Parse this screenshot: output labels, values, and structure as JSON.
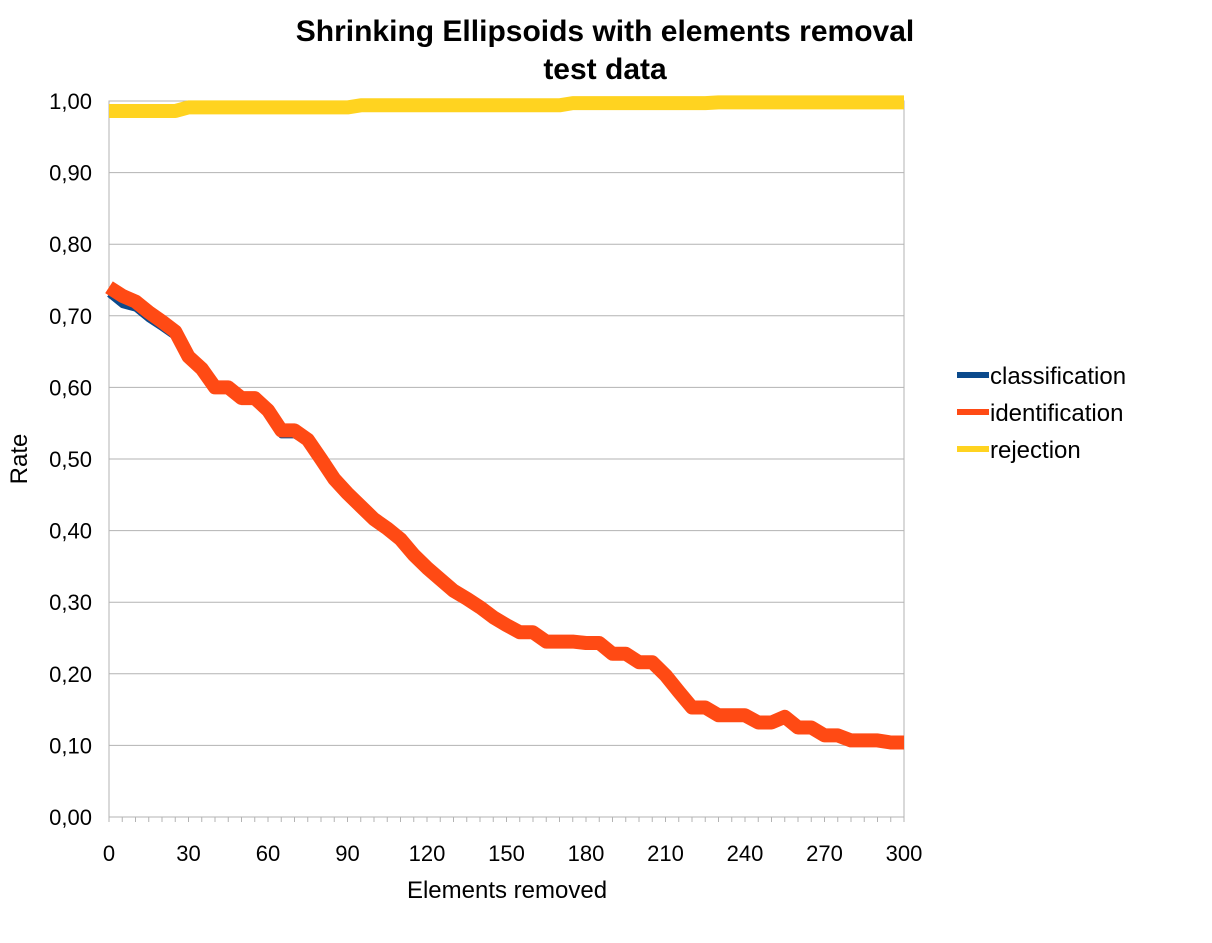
{
  "chart_data": {
    "type": "line",
    "title": "Shrinking Ellipsoids with elements removal",
    "subtitle": "test data",
    "xlabel": "Elements removed",
    "ylabel": "Rate",
    "xlim": [
      0,
      300
    ],
    "ylim": [
      0,
      1
    ],
    "x_ticks": [
      "0",
      "30",
      "60",
      "90",
      "120",
      "150",
      "180",
      "210",
      "240",
      "270",
      "300"
    ],
    "y_ticks": [
      "0,00",
      "0,10",
      "0,20",
      "0,30",
      "0,40",
      "0,50",
      "0,60",
      "0,70",
      "0,80",
      "0,90",
      "1,00"
    ],
    "grid": true,
    "legend_position": "right",
    "x": [
      0,
      5,
      10,
      15,
      20,
      25,
      30,
      35,
      40,
      45,
      50,
      55,
      60,
      65,
      70,
      75,
      80,
      85,
      90,
      95,
      100,
      105,
      110,
      115,
      120,
      125,
      130,
      135,
      140,
      145,
      150,
      155,
      160,
      165,
      170,
      175,
      180,
      185,
      190,
      195,
      200,
      205,
      210,
      215,
      220,
      225,
      230,
      235,
      240,
      245,
      250,
      255,
      260,
      265,
      270,
      275,
      280,
      285,
      290,
      295,
      300
    ],
    "series": [
      {
        "name": "classification",
        "color": "#0b4a8c",
        "width": 6,
        "values": [
          0.73,
          0.715,
          0.71,
          0.695,
          0.683,
          0.67,
          0.638,
          0.62,
          0.597,
          0.597,
          0.582,
          0.582,
          0.565,
          0.533,
          0.533,
          0.522,
          0.497,
          0.468,
          0.448,
          0.43,
          0.413,
          0.4,
          0.385,
          0.362,
          0.345,
          0.328,
          0.313,
          0.302,
          0.29,
          0.275,
          0.265,
          0.255,
          0.255,
          0.243,
          0.243,
          0.243,
          0.24,
          0.24,
          0.225,
          0.225,
          0.213,
          0.213,
          0.195,
          0.172,
          0.15,
          0.15,
          0.14,
          0.14,
          0.14,
          0.13,
          0.13,
          0.138,
          0.123,
          0.123,
          0.112,
          0.112,
          0.105,
          0.105,
          0.105,
          0.102,
          0.102
        ]
      },
      {
        "name": "identification",
        "color": "#ff4a14",
        "width": 14,
        "values": [
          0.74,
          0.728,
          0.72,
          0.705,
          0.692,
          0.678,
          0.643,
          0.626,
          0.6,
          0.6,
          0.585,
          0.585,
          0.568,
          0.54,
          0.54,
          0.527,
          0.5,
          0.472,
          0.452,
          0.434,
          0.416,
          0.403,
          0.388,
          0.366,
          0.348,
          0.332,
          0.316,
          0.305,
          0.293,
          0.279,
          0.268,
          0.258,
          0.258,
          0.245,
          0.245,
          0.245,
          0.243,
          0.243,
          0.228,
          0.228,
          0.216,
          0.216,
          0.198,
          0.175,
          0.153,
          0.153,
          0.142,
          0.142,
          0.142,
          0.132,
          0.132,
          0.14,
          0.125,
          0.125,
          0.114,
          0.114,
          0.107,
          0.107,
          0.107,
          0.104,
          0.104
        ]
      },
      {
        "name": "rejection",
        "color": "#ffd320",
        "width": 14,
        "values": [
          0.986,
          0.986,
          0.986,
          0.986,
          0.986,
          0.986,
          0.991,
          0.991,
          0.991,
          0.991,
          0.991,
          0.991,
          0.991,
          0.991,
          0.991,
          0.991,
          0.991,
          0.991,
          0.991,
          0.994,
          0.994,
          0.994,
          0.994,
          0.994,
          0.994,
          0.994,
          0.994,
          0.994,
          0.994,
          0.994,
          0.994,
          0.994,
          0.994,
          0.994,
          0.994,
          0.997,
          0.997,
          0.997,
          0.997,
          0.997,
          0.997,
          0.997,
          0.997,
          0.997,
          0.997,
          0.997,
          0.998,
          0.998,
          0.998,
          0.998,
          0.998,
          0.998,
          0.998,
          0.998,
          0.998,
          0.998,
          0.998,
          0.998,
          0.998,
          0.998,
          0.998
        ]
      }
    ]
  }
}
